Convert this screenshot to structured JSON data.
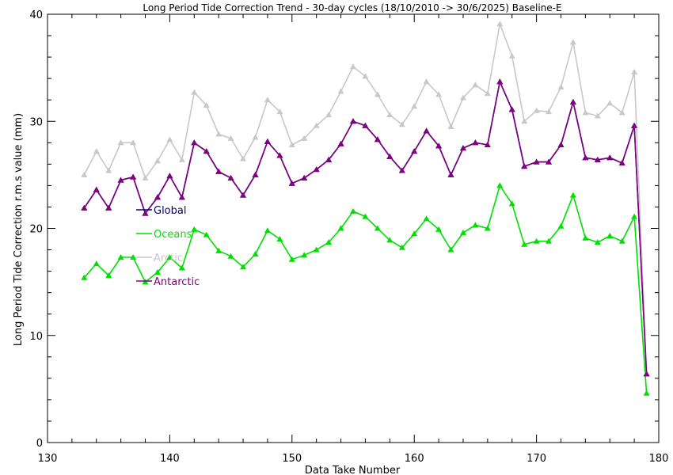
{
  "chart_data": {
    "type": "line",
    "title": "Long Period Tide Correction Trend - 30-day cycles (18/10/2010 -> 30/6/2025) Baseline-E",
    "xlabel": "Data Take Number",
    "ylabel": "Long Period Tide Correction r.m.s value (mm)",
    "xlim": [
      130,
      180
    ],
    "ylim": [
      0,
      40
    ],
    "xticks": [
      "130",
      "140",
      "150",
      "160",
      "170",
      "180"
    ],
    "yticks": [
      "0",
      "10",
      "20",
      "30",
      "40"
    ],
    "grid": false,
    "legend_position": "inside-left",
    "x": [
      133,
      134,
      135,
      136,
      137,
      138,
      139,
      140,
      141,
      142,
      143,
      144,
      145,
      146,
      147,
      148,
      149,
      150,
      151,
      152,
      153,
      154,
      155,
      156,
      157,
      158,
      159,
      160,
      161,
      162,
      163,
      164,
      165,
      166,
      167,
      168,
      169,
      170,
      171,
      172,
      173,
      174,
      175,
      176,
      177,
      178,
      179
    ],
    "series": [
      {
        "name": "Global",
        "color": "#000080",
        "values": [
          21.9,
          23.6,
          21.9,
          24.5,
          24.8,
          21.4,
          22.9,
          24.9,
          22.9,
          28.0,
          27.2,
          25.3,
          24.7,
          23.1,
          25.0,
          28.1,
          26.8,
          24.2,
          24.7,
          25.5,
          26.4,
          27.9,
          30.0,
          29.6,
          28.3,
          26.7,
          25.4,
          27.2,
          29.1,
          27.7,
          25.0,
          27.5,
          28.0,
          27.8,
          33.7,
          31.1,
          25.8,
          26.2,
          26.2,
          27.8,
          31.8,
          26.6,
          26.4,
          26.6,
          26.1,
          29.6,
          6.4
        ]
      },
      {
        "name": "Oceans",
        "color": "#00e000",
        "values": [
          15.4,
          16.7,
          15.6,
          17.3,
          17.3,
          15.0,
          15.9,
          17.3,
          16.3,
          19.9,
          19.4,
          17.9,
          17.4,
          16.4,
          17.6,
          19.8,
          19.0,
          17.1,
          17.5,
          18.0,
          18.7,
          20.0,
          21.6,
          21.1,
          20.0,
          18.9,
          18.2,
          19.5,
          20.9,
          19.9,
          18.0,
          19.6,
          20.3,
          20.0,
          24.0,
          22.3,
          18.5,
          18.8,
          18.8,
          20.2,
          23.1,
          19.1,
          18.7,
          19.3,
          18.8,
          21.1,
          4.6
        ]
      },
      {
        "name": "Arctic",
        "color": "#c8c8c8",
        "values": [
          25.0,
          27.2,
          25.4,
          28.0,
          28.0,
          24.7,
          26.3,
          28.3,
          26.4,
          32.7,
          31.5,
          28.8,
          28.4,
          26.5,
          28.5,
          32.0,
          30.9,
          27.8,
          28.4,
          29.6,
          30.6,
          32.8,
          35.1,
          34.2,
          32.5,
          30.6,
          29.7,
          31.4,
          33.7,
          32.5,
          29.5,
          32.2,
          33.4,
          32.6,
          39.1,
          36.1,
          30.0,
          31.0,
          30.9,
          33.2,
          37.4,
          30.8,
          30.5,
          31.7,
          30.8,
          34.6,
          6.5
        ]
      },
      {
        "name": "Antarctic",
        "color": "#800080",
        "values": [
          21.9,
          23.6,
          21.9,
          24.5,
          24.8,
          21.4,
          22.9,
          24.9,
          22.9,
          28.0,
          27.2,
          25.3,
          24.7,
          23.1,
          25.0,
          28.1,
          26.8,
          24.2,
          24.7,
          25.5,
          26.4,
          27.9,
          30.0,
          29.6,
          28.3,
          26.7,
          25.4,
          27.2,
          29.1,
          27.7,
          25.0,
          27.5,
          28.0,
          27.8,
          33.7,
          31.1,
          25.8,
          26.2,
          26.2,
          27.8,
          31.8,
          26.6,
          26.4,
          26.6,
          26.1,
          29.6,
          6.4
        ]
      }
    ]
  }
}
